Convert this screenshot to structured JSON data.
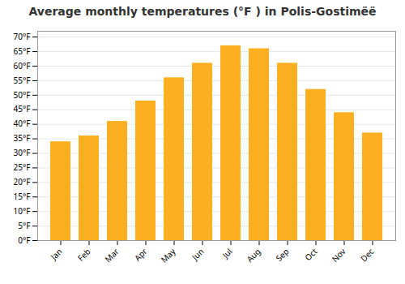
{
  "chart_data": {
    "type": "bar",
    "title": "Average monthly temperatures (°F ) in Polis-Gostimëë",
    "categories": [
      "Jan",
      "Feb",
      "Mar",
      "Apr",
      "May",
      "Jun",
      "Jul",
      "Aug",
      "Sep",
      "Oct",
      "Nov",
      "Dec"
    ],
    "values": [
      34,
      36,
      41,
      48,
      56,
      61,
      67,
      66,
      61,
      52,
      44,
      37
    ],
    "color": "#FFB020",
    "ylim": [
      0,
      72
    ],
    "yticks": [
      {
        "value": 0,
        "label": "0°F"
      },
      {
        "value": 5,
        "label": "5°F"
      },
      {
        "value": 10,
        "label": "10°F"
      },
      {
        "value": 15,
        "label": "15°F"
      },
      {
        "value": 20,
        "label": "20°F"
      },
      {
        "value": 25,
        "label": "25°F"
      },
      {
        "value": 30,
        "label": "30°F"
      },
      {
        "value": 35,
        "label": "35°F"
      },
      {
        "value": 40,
        "label": "40°F"
      },
      {
        "value": 45,
        "label": "45°F"
      },
      {
        "value": 50,
        "label": "50°F"
      },
      {
        "value": 55,
        "label": "55°F"
      },
      {
        "value": 60,
        "label": "60°F"
      },
      {
        "value": 65,
        "label": "65°F"
      },
      {
        "value": 70,
        "label": "70°F"
      }
    ],
    "grid": true
  }
}
